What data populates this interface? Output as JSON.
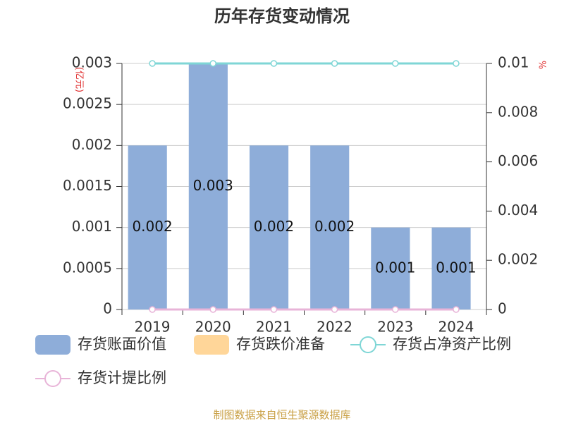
{
  "chart_data": {
    "type": "bar",
    "title": "历年存货变动情况",
    "y_label": "(亿元)",
    "y2_label": "%",
    "categories": [
      "2019",
      "2020",
      "2021",
      "2022",
      "2023",
      "2024"
    ],
    "series": [
      {
        "name": "存货账面价值",
        "type": "bar",
        "color": "#8eadd9",
        "values": [
          0.002,
          0.003,
          0.002,
          0.002,
          0.001,
          0.001
        ]
      },
      {
        "name": "存货跌价准备",
        "type": "bar",
        "color": "#ffd699",
        "values": [
          0,
          0,
          0,
          0,
          0,
          0
        ]
      },
      {
        "name": "存货占净资产比例",
        "type": "line",
        "axis": "y2",
        "color": "#7fd6d6",
        "values": [
          0.01,
          0.01,
          0.01,
          0.01,
          0.01,
          0.01
        ]
      },
      {
        "name": "存货计提比例",
        "type": "line",
        "axis": "y2",
        "color": "#e8b4d8",
        "values": [
          0,
          0,
          0,
          0,
          0,
          0
        ]
      }
    ],
    "ylim": [
      0,
      0.003
    ],
    "yticks": [
      0,
      0.0005,
      0.001,
      0.0015,
      0.002,
      0.0025,
      0.003
    ],
    "y2lim": [
      0,
      0.01
    ],
    "y2ticks": [
      0,
      0.002,
      0.004,
      0.006,
      0.008,
      0.01
    ],
    "grid": true,
    "legend": "bottom",
    "source": "制图数据来自恒生聚源数据库"
  }
}
